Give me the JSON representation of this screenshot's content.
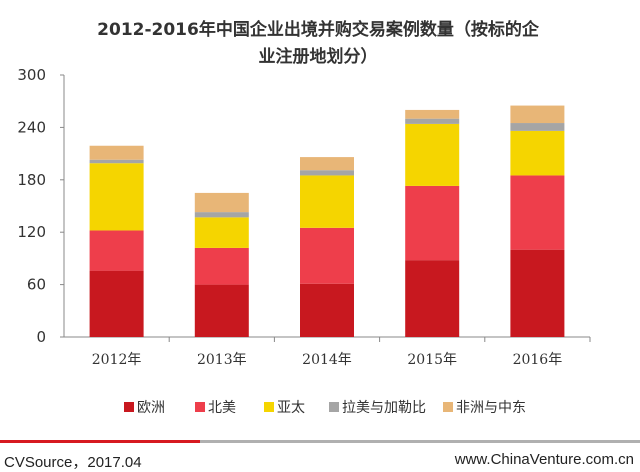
{
  "chart_data": {
    "type": "bar",
    "stacked": true,
    "title_lines": [
      "2012-2016年中国企业出境并购交易案例数量（按标的企",
      "业注册地划分）"
    ],
    "categories": [
      "2012年",
      "2013年",
      "2014年",
      "2015年",
      "2016年"
    ],
    "ylim": [
      0,
      300
    ],
    "yticks": [
      0,
      60,
      120,
      180,
      240,
      300
    ],
    "grid": false,
    "legend_position": "bottom",
    "series": [
      {
        "name": "欧洲",
        "color": "#c8181f",
        "values": [
          76,
          60,
          61,
          88,
          100
        ]
      },
      {
        "name": "北美",
        "color": "#ee3e4b",
        "values": [
          46,
          42,
          64,
          85,
          85
        ]
      },
      {
        "name": "亚太",
        "color": "#f5d500",
        "values": [
          77,
          35,
          60,
          71,
          51
        ]
      },
      {
        "name": "拉美与加勒比",
        "color": "#a5a5a5",
        "values": [
          4,
          6,
          6,
          6,
          9
        ]
      },
      {
        "name": "非洲与中东",
        "color": "#e8b677",
        "values": [
          16,
          22,
          15,
          10,
          20
        ]
      }
    ]
  },
  "footer": {
    "source": "CVSource，2017.04",
    "website": "www.ChinaVenture.com.cn"
  }
}
